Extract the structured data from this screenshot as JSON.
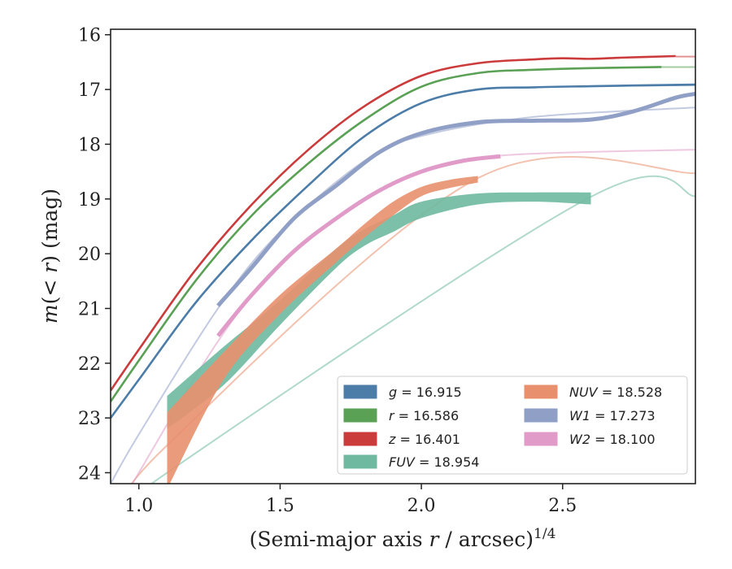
{
  "chart_data": {
    "type": "line",
    "xlabel": "(Semi-major axis r / arcsec)^1/4",
    "xlabel_parts": {
      "pre": "(Semi-major axis ",
      "var": "r",
      "post": " / arcsec)",
      "exp": "1/4"
    },
    "ylabel": "m(<r) (mag)",
    "ylabel_parts": {
      "var": "m",
      "mid": "(< ",
      "var2": "r",
      "post": ") (mag)"
    },
    "xlim": [
      0.9,
      2.97
    ],
    "ylim": [
      24.2,
      15.9
    ],
    "y_inverted": true,
    "x_ticks": [
      1.0,
      1.5,
      2.0,
      2.5
    ],
    "x_tick_labels": [
      "1.0",
      "1.5",
      "2.0",
      "2.5"
    ],
    "y_ticks": [
      16,
      17,
      18,
      19,
      20,
      21,
      22,
      23,
      24
    ],
    "y_tick_labels": [
      "16",
      "17",
      "18",
      "19",
      "20",
      "21",
      "22",
      "23",
      "24"
    ],
    "grid": false,
    "legend_position": "lower-right",
    "series": [
      {
        "name": "g = 16.915",
        "band": "g",
        "value": "16.915",
        "color": "#4c7ca8",
        "x": [
          0.9,
          1.0,
          1.2,
          1.4,
          1.6,
          1.8,
          2.0,
          2.2,
          2.4,
          2.6,
          2.97
        ],
        "y": [
          23.0,
          22.3,
          20.9,
          19.75,
          18.75,
          17.85,
          17.25,
          17.0,
          16.96,
          16.94,
          16.91
        ],
        "model_x": [
          2.6,
          2.97
        ],
        "model_y": [
          16.94,
          16.92
        ]
      },
      {
        "name": "r = 16.586",
        "band": "r",
        "value": "16.586",
        "color": "#5aa155",
        "x": [
          0.9,
          1.0,
          1.2,
          1.4,
          1.6,
          1.8,
          2.0,
          2.2,
          2.4,
          2.6,
          2.85
        ],
        "y": [
          22.7,
          21.95,
          20.5,
          19.3,
          18.35,
          17.55,
          16.95,
          16.7,
          16.64,
          16.61,
          16.59
        ],
        "model_x": [
          2.85,
          2.97
        ],
        "model_y": [
          16.59,
          16.59
        ]
      },
      {
        "name": "z = 16.401",
        "band": "z",
        "value": "16.401",
        "color": "#cc3b3c",
        "x": [
          0.9,
          1.0,
          1.2,
          1.4,
          1.6,
          1.8,
          2.0,
          2.2,
          2.4,
          2.5,
          2.6,
          2.7,
          2.9
        ],
        "y": [
          22.5,
          21.75,
          20.3,
          19.1,
          18.1,
          17.3,
          16.75,
          16.52,
          16.45,
          16.43,
          16.44,
          16.42,
          16.39
        ],
        "model_x": [
          2.9,
          2.97
        ],
        "model_y": [
          16.4,
          16.4
        ]
      },
      {
        "name": "FUV = 18.954",
        "band": "FUV",
        "value": "18.954",
        "color": "#6fb9a0",
        "x": [
          1.1,
          1.3,
          1.5,
          1.7,
          1.8,
          1.9,
          2.0,
          2.2,
          2.4,
          2.6
        ],
        "y": [
          22.7,
          22.0,
          21.05,
          20.05,
          19.7,
          19.45,
          19.2,
          19.0,
          18.97,
          18.97
        ],
        "y_upper": [
          22.6,
          21.7,
          20.85,
          19.9,
          19.55,
          19.3,
          19.05,
          18.9,
          18.88,
          18.88
        ],
        "y_lower": [
          23.2,
          22.4,
          21.3,
          20.25,
          19.85,
          19.6,
          19.35,
          19.1,
          19.05,
          19.1
        ],
        "model_x": [
          0.9,
          1.1,
          2.6,
          2.97
        ],
        "model_y": [
          25.0,
          24.0,
          18.96,
          18.95
        ]
      },
      {
        "name": "NUV = 18.528",
        "band": "NUV",
        "value": "18.528",
        "color": "#e8906e",
        "x": [
          1.1,
          1.3,
          1.5,
          1.7,
          1.8,
          1.9,
          2.0,
          2.1,
          2.2
        ],
        "y": [
          23.6,
          21.95,
          20.9,
          20.0,
          19.55,
          19.15,
          18.85,
          18.7,
          18.62
        ],
        "y_upper": [
          22.9,
          21.8,
          20.75,
          19.9,
          19.45,
          19.05,
          18.78,
          18.65,
          18.58
        ],
        "y_lower": [
          24.3,
          22.3,
          21.1,
          20.15,
          19.7,
          19.3,
          18.95,
          18.8,
          18.7
        ],
        "model_x": [
          0.9,
          1.1,
          2.2,
          2.97
        ],
        "model_y": [
          25.0,
          23.5,
          18.62,
          18.53
        ]
      },
      {
        "name": "W1 = 17.273",
        "band": "W1",
        "value": "17.273",
        "color": "#8f9fc6",
        "x": [
          1.28,
          1.4,
          1.55,
          1.7,
          1.85,
          2.0,
          2.2,
          2.4,
          2.6,
          2.75,
          2.9,
          2.97
        ],
        "y": [
          20.95,
          20.25,
          19.35,
          18.75,
          18.15,
          17.8,
          17.6,
          17.57,
          17.55,
          17.4,
          17.15,
          17.08
        ],
        "model_x": [
          0.9,
          1.0,
          1.28,
          1.5,
          1.8,
          2.0,
          2.4,
          2.97
        ],
        "model_y": [
          24.2,
          23.3,
          21.0,
          19.6,
          18.3,
          17.85,
          17.5,
          17.33
        ]
      },
      {
        "name": "W2 = 18.100",
        "band": "W2",
        "value": "18.100",
        "color": "#e09bc9",
        "x": [
          1.28,
          1.4,
          1.55,
          1.7,
          1.85,
          2.0,
          2.15,
          2.28
        ],
        "y": [
          21.5,
          20.75,
          19.95,
          19.35,
          18.85,
          18.5,
          18.3,
          18.22
        ],
        "model_x": [
          0.9,
          1.0,
          1.28,
          1.5,
          1.8,
          2.0,
          2.3,
          2.97
        ],
        "model_y": [
          24.9,
          24.0,
          21.6,
          20.2,
          19.0,
          18.5,
          18.2,
          18.1
        ]
      }
    ],
    "legend": {
      "columns": [
        [
          "g = 16.915",
          "r = 16.586",
          "z = 16.401",
          "FUV = 18.954"
        ],
        [
          "NUV = 18.528",
          "W1 = 17.273",
          "W2 = 18.100"
        ]
      ]
    }
  }
}
